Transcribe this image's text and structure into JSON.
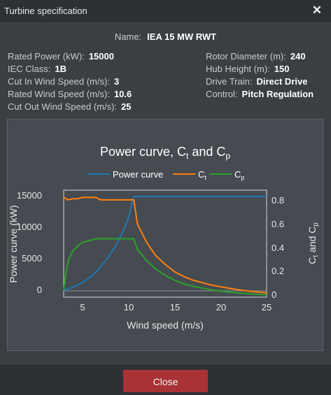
{
  "window": {
    "title": "Turbine specification",
    "close_icon": "close-icon"
  },
  "name": {
    "label": "Name:",
    "value": "IEA 15 MW RWT"
  },
  "specs_left": [
    {
      "label": "Rated Power (kW):",
      "value": "15000"
    },
    {
      "label": "IEC Class:",
      "value": "1B"
    },
    {
      "label": "Cut In Wind Speed (m/s):",
      "value": "3"
    },
    {
      "label": "Rated Wind Speed (m/s):",
      "value": "10.6"
    },
    {
      "label": "Cut Out Wind Speed (m/s):",
      "value": "25"
    }
  ],
  "specs_right": [
    {
      "label": "Rotor Diameter (m):",
      "value": "240"
    },
    {
      "label": "Hub Height (m):",
      "value": "150"
    },
    {
      "label": "Drive Train:",
      "value": "Direct Drive"
    },
    {
      "label": "Control:",
      "value": "Pitch Regulation"
    }
  ],
  "footer": {
    "close_label": "Close"
  },
  "colors": {
    "power": "#1f77b4",
    "ct": "#ff7f0e",
    "cp": "#2ca02c",
    "close_button": "#a83236"
  },
  "chart_data": {
    "type": "line",
    "title_main": "Power curve, C",
    "title_sub1": "t",
    "title_mid": " and C",
    "title_sub2": "p",
    "xlabel": "Wind speed (m/s)",
    "ylabel_left": "Power curve (kW)",
    "ylabel_right_main": "C",
    "ylabel_right_sub1": "t",
    "ylabel_right_mid": " and C",
    "ylabel_right_sub2": "p",
    "xlim": [
      3,
      25
    ],
    "ylim_left": [
      -1000,
      16000
    ],
    "ylim_right": [
      0,
      0.88
    ],
    "xticks": [
      "5",
      "10",
      "15",
      "20",
      "25"
    ],
    "yticks_left": [
      "0",
      "5000",
      "10000",
      "15000"
    ],
    "yticks_right": [
      "0",
      "0.2",
      "0.4",
      "0.6",
      "0.8"
    ],
    "legend_position": "top",
    "series": [
      {
        "name": "Power curve",
        "axis": "left",
        "x": [
          3,
          3.5,
          4,
          4.5,
          5,
          5.5,
          6,
          6.5,
          7,
          7.5,
          8,
          8.5,
          9,
          9.5,
          10,
          10.6,
          11,
          12,
          14,
          16,
          18,
          20,
          22,
          25
        ],
        "y": [
          60,
          300,
          600,
          900,
          1300,
          1800,
          2300,
          3000,
          3800,
          4700,
          5700,
          6800,
          8200,
          9700,
          11500,
          15000,
          15000,
          15000,
          15000,
          15000,
          15000,
          15000,
          15000,
          15000
        ]
      },
      {
        "name": "C",
        "sub": "t",
        "axis": "right",
        "x": [
          3,
          3.5,
          4,
          4.5,
          5,
          5.5,
          6,
          6.5,
          7,
          8,
          9,
          10,
          10.6,
          11,
          12,
          13,
          14,
          15,
          16,
          17,
          18,
          19,
          20,
          21,
          22,
          23,
          24,
          25
        ],
        "y": [
          0.82,
          0.8,
          0.81,
          0.81,
          0.82,
          0.82,
          0.82,
          0.82,
          0.8,
          0.8,
          0.8,
          0.8,
          0.8,
          0.6,
          0.45,
          0.34,
          0.27,
          0.21,
          0.17,
          0.14,
          0.12,
          0.1,
          0.085,
          0.072,
          0.06,
          0.05,
          0.042,
          0.035
        ]
      },
      {
        "name": "C",
        "sub": "p",
        "axis": "right",
        "x": [
          3,
          3.3,
          3.6,
          4,
          4.5,
          5,
          5.5,
          6,
          6.5,
          7,
          8,
          9,
          10,
          10.6,
          11,
          12,
          13,
          14,
          15,
          16,
          17,
          18,
          19,
          20,
          21,
          22,
          23,
          24,
          25
        ],
        "y": [
          0.05,
          0.23,
          0.32,
          0.38,
          0.42,
          0.45,
          0.46,
          0.47,
          0.48,
          0.48,
          0.48,
          0.48,
          0.48,
          0.48,
          0.39,
          0.3,
          0.23,
          0.18,
          0.14,
          0.11,
          0.09,
          0.075,
          0.06,
          0.05,
          0.04,
          0.034,
          0.028,
          0.023,
          0.02
        ]
      }
    ]
  }
}
